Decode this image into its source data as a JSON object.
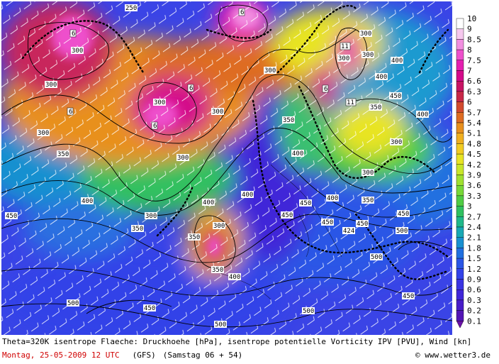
{
  "caption": {
    "line1": "Theta=320K isentrope Flaeche: Druckhoehe [hPa], isentrope potentielle Vorticity IPV [PVU], Wind [kn]",
    "date": "Montag, 25-05-2009  12 UTC",
    "model": "(GFS)",
    "run": "(Samstag 06 + 54)",
    "credit": "© www.wetter3.de"
  },
  "legend": {
    "labels": [
      "10",
      "9",
      "8.5",
      "8",
      "7.5",
      "7",
      "6.6",
      "6.3",
      "6",
      "5.7",
      "5.4",
      "5.1",
      "4.8",
      "4.5",
      "4.2",
      "3.9",
      "3.6",
      "3.3",
      "3",
      "2.7",
      "2.4",
      "2.1",
      "1.8",
      "1.5",
      "1.2",
      "0.9",
      "0.6",
      "0.3",
      "0.2",
      "0.1"
    ],
    "colors": [
      "#ffffff",
      "#f6c8ee",
      "#f28ee0",
      "#ee50cc",
      "#e41fb0",
      "#d40a8a",
      "#c81464",
      "#c82848",
      "#d24a2e",
      "#de6c22",
      "#e8901e",
      "#f0b020",
      "#f2cc22",
      "#e8e424",
      "#c8e62a",
      "#a0e030",
      "#78d838",
      "#50cc44",
      "#30c060",
      "#20b88a",
      "#18a8b4",
      "#1890d0",
      "#2070e0",
      "#2a56e6",
      "#3242e8",
      "#3a34e2",
      "#4026d8",
      "#481cc8",
      "#5214b4"
    ],
    "arrow_color": "#6a10a8"
  },
  "map": {
    "contour_labels": [
      "250",
      "300",
      "300",
      "300",
      "300",
      "300",
      "300",
      "300",
      "300",
      "300",
      "300",
      "300",
      "300",
      "300",
      "300",
      "350",
      "350",
      "350",
      "350",
      "350",
      "350",
      "350",
      "400",
      "400",
      "400",
      "400",
      "400",
      "400",
      "400",
      "400",
      "400",
      "450",
      "450",
      "450",
      "450",
      "450",
      "450",
      "450",
      "450",
      "450",
      "500",
      "500",
      "500",
      "500",
      "500",
      "424"
    ],
    "pv_labels": [
      "6",
      "6",
      "6",
      "6",
      "6",
      "6",
      "11",
      "11"
    ]
  }
}
